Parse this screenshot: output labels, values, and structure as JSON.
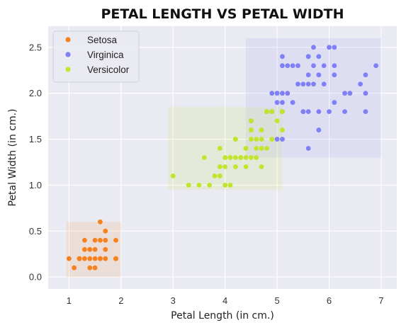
{
  "chart_data": {
    "type": "scatter",
    "title": "PETAL LENGTH VS PETAL WIDTH",
    "xlabel": "Petal Length (in cm.)",
    "ylabel": "Petal Width (in cm.)",
    "xlim": [
      0.6,
      7.3
    ],
    "ylim": [
      -0.13,
      2.73
    ],
    "x_ticks": [
      "1",
      "2",
      "3",
      "4",
      "5",
      "6",
      "7"
    ],
    "y_ticks": [
      "0.0",
      "0.5",
      "1.0",
      "1.5",
      "2.0",
      "2.5"
    ],
    "grid": true,
    "background": "#eaeaf2",
    "legend_position": "top-left",
    "series": [
      {
        "name": "Setosa",
        "color": "#f5821f",
        "region": {
          "x": [
            0.95,
            2.0
          ],
          "y": [
            0.0,
            0.6
          ],
          "color": "#f5821f"
        },
        "points": [
          [
            1.4,
            0.2
          ],
          [
            1.3,
            0.2
          ],
          [
            1.5,
            0.2
          ],
          [
            1.7,
            0.4
          ],
          [
            1.4,
            0.3
          ],
          [
            1.5,
            0.1
          ],
          [
            1.6,
            0.2
          ],
          [
            1.1,
            0.1
          ],
          [
            1.2,
            0.2
          ],
          [
            1.5,
            0.4
          ],
          [
            1.3,
            0.4
          ],
          [
            1.7,
            0.3
          ],
          [
            1.0,
            0.2
          ],
          [
            1.7,
            0.5
          ],
          [
            1.9,
            0.2
          ],
          [
            1.6,
            0.4
          ],
          [
            1.4,
            0.1
          ],
          [
            1.2,
            0.2
          ],
          [
            1.3,
            0.3
          ],
          [
            1.9,
            0.4
          ],
          [
            1.6,
            0.6
          ],
          [
            1.4,
            0.3
          ],
          [
            1.6,
            0.2
          ],
          [
            1.5,
            0.3
          ],
          [
            1.7,
            0.2
          ],
          [
            1.9,
            0.2
          ]
        ]
      },
      {
        "name": "Virginica",
        "color": "#7f7ff7",
        "region": {
          "x": [
            4.4,
            7.0
          ],
          "y": [
            1.3,
            2.6
          ],
          "color": "#8f8fff"
        },
        "points": [
          [
            6.0,
            2.5
          ],
          [
            5.1,
            1.9
          ],
          [
            5.9,
            2.1
          ],
          [
            5.6,
            1.8
          ],
          [
            5.8,
            2.2
          ],
          [
            6.6,
            2.1
          ],
          [
            4.5,
            1.7
          ],
          [
            6.3,
            1.8
          ],
          [
            5.8,
            1.8
          ],
          [
            6.1,
            2.5
          ],
          [
            5.1,
            2.0
          ],
          [
            5.3,
            1.9
          ],
          [
            5.5,
            2.1
          ],
          [
            5.0,
            2.0
          ],
          [
            5.1,
            2.4
          ],
          [
            5.3,
            2.3
          ],
          [
            5.5,
            1.8
          ],
          [
            6.7,
            2.2
          ],
          [
            6.9,
            2.3
          ],
          [
            5.0,
            1.5
          ],
          [
            5.7,
            2.3
          ],
          [
            4.9,
            2.0
          ],
          [
            6.7,
            2.0
          ],
          [
            4.9,
            1.8
          ],
          [
            5.7,
            2.1
          ],
          [
            6.0,
            1.8
          ],
          [
            4.8,
            1.8
          ],
          [
            5.6,
            2.1
          ],
          [
            5.8,
            1.6
          ],
          [
            6.4,
            2.0
          ],
          [
            5.6,
            2.2
          ],
          [
            5.1,
            1.5
          ],
          [
            5.6,
            1.4
          ],
          [
            6.1,
            2.3
          ],
          [
            5.6,
            2.4
          ],
          [
            5.5,
            1.8
          ],
          [
            4.8,
            1.8
          ],
          [
            5.4,
            2.1
          ],
          [
            5.6,
            2.4
          ],
          [
            5.1,
            2.3
          ],
          [
            5.9,
            2.3
          ],
          [
            5.7,
            2.5
          ],
          [
            5.2,
            2.3
          ],
          [
            5.0,
            1.9
          ],
          [
            5.2,
            2.0
          ],
          [
            5.4,
            2.3
          ],
          [
            5.1,
            1.8
          ],
          [
            6.1,
            1.9
          ],
          [
            6.7,
            1.8
          ],
          [
            6.3,
            2.0
          ],
          [
            5.8,
            2.4
          ],
          [
            6.1,
            2.2
          ]
        ]
      },
      {
        "name": "Versicolor",
        "color": "#c2e52b",
        "region": {
          "x": [
            2.9,
            5.1
          ],
          "y": [
            0.95,
            1.85
          ],
          "color": "#c2e52b"
        },
        "points": [
          [
            4.7,
            1.4
          ],
          [
            4.5,
            1.5
          ],
          [
            4.9,
            1.5
          ],
          [
            4.0,
            1.3
          ],
          [
            4.6,
            1.5
          ],
          [
            4.5,
            1.3
          ],
          [
            4.7,
            1.6
          ],
          [
            3.3,
            1.0
          ],
          [
            4.6,
            1.3
          ],
          [
            3.9,
            1.4
          ],
          [
            3.5,
            1.0
          ],
          [
            4.2,
            1.5
          ],
          [
            4.0,
            1.0
          ],
          [
            3.6,
            1.3
          ],
          [
            4.4,
            1.4
          ],
          [
            4.1,
            1.0
          ],
          [
            4.8,
            1.8
          ],
          [
            4.0,
            1.3
          ],
          [
            4.9,
            1.5
          ],
          [
            4.7,
            1.2
          ],
          [
            4.3,
            1.3
          ],
          [
            4.4,
            1.4
          ],
          [
            4.8,
            1.4
          ],
          [
            5.0,
            1.7
          ],
          [
            3.8,
            1.1
          ],
          [
            3.7,
            1.0
          ],
          [
            3.9,
            1.2
          ],
          [
            5.1,
            1.6
          ],
          [
            4.5,
            1.6
          ],
          [
            4.7,
            1.5
          ],
          [
            4.4,
            1.3
          ],
          [
            4.1,
            1.3
          ],
          [
            4.0,
            1.2
          ],
          [
            4.4,
            1.2
          ],
          [
            4.6,
            1.4
          ],
          [
            3.0,
            1.1
          ],
          [
            4.2,
            1.3
          ],
          [
            4.2,
            1.2
          ],
          [
            4.3,
            1.3
          ],
          [
            4.1,
            1.3
          ],
          [
            4.5,
            1.7
          ],
          [
            3.9,
            1.1
          ],
          [
            4.2,
            1.5
          ],
          [
            4.8,
            1.8
          ],
          [
            4.9,
            1.8
          ],
          [
            5.1,
            1.8
          ]
        ]
      }
    ]
  }
}
